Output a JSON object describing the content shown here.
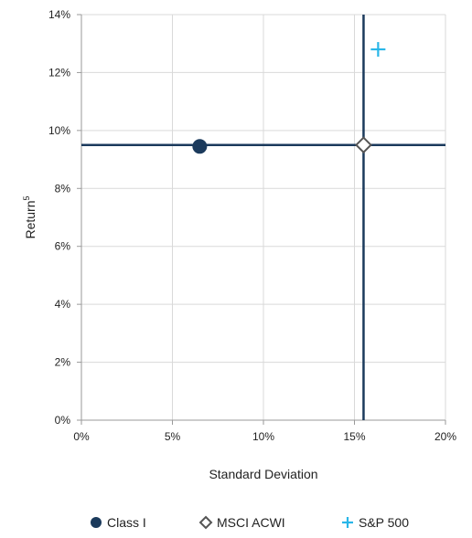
{
  "chart_data": {
    "type": "scatter",
    "title": "",
    "xlabel": "Standard Deviation",
    "ylabel": "Return",
    "ylabel_superscript": "5",
    "xlim": [
      0,
      20
    ],
    "ylim": [
      0,
      14
    ],
    "x_ticks": [
      0,
      5,
      10,
      15,
      20
    ],
    "y_ticks": [
      0,
      2,
      4,
      6,
      8,
      10,
      12,
      14
    ],
    "x_tick_labels": [
      "0%",
      "5%",
      "10%",
      "15%",
      "20%"
    ],
    "y_tick_labels": [
      "0%",
      "2%",
      "4%",
      "6%",
      "8%",
      "10%",
      "12%",
      "14%"
    ],
    "grid": true,
    "legend_position": "bottom",
    "series": [
      {
        "name": "Class I",
        "marker": "filled-circle",
        "color": "#1b3a5c",
        "x": [
          6.5
        ],
        "y": [
          9.45
        ]
      },
      {
        "name": "MSCI ACWI",
        "marker": "open-diamond",
        "color": "#555555",
        "x": [
          15.5
        ],
        "y": [
          9.5
        ]
      },
      {
        "name": "S&P 500",
        "marker": "plus",
        "color": "#29b6e8",
        "x": [
          16.3
        ],
        "y": [
          12.8
        ]
      }
    ],
    "reference_lines": {
      "horizontal_y": 9.5,
      "vertical_x": 15.5,
      "color": "#1b3a5c"
    }
  }
}
